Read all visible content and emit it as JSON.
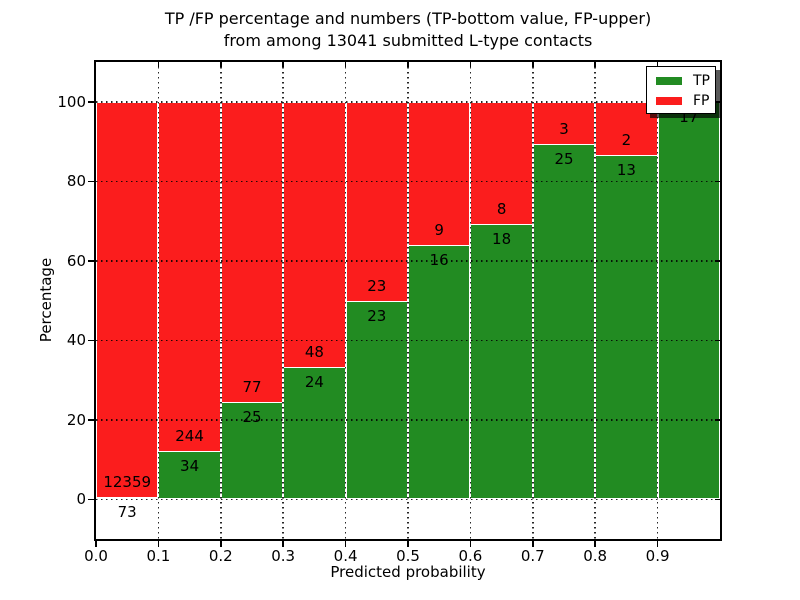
{
  "figure": {
    "title_line1": "TP /FP percentage and numbers (TP-bottom value, FP-upper)",
    "title_line2": "from among 13041 submitted L-type contacts",
    "xlabel": "Predicted probability",
    "ylabel": "Percentage"
  },
  "chart_data": {
    "type": "bar",
    "stacked": true,
    "normalized_to_percent": true,
    "title": "TP /FP percentage and numbers (TP-bottom value, FP-upper) from among 13041 submitted L-type contacts",
    "total_contacts": 13041,
    "xlabel": "Predicted probability",
    "ylabel": "Percentage",
    "xlim": [
      0.0,
      1.0
    ],
    "ylim": [
      -10,
      110
    ],
    "grid": "dotted black, both axes, drawn over bars",
    "xticks": [
      "0.0",
      "0.1",
      "0.2",
      "0.3",
      "0.4",
      "0.5",
      "0.6",
      "0.7",
      "0.8",
      "0.9"
    ],
    "yticks": [
      0,
      20,
      40,
      60,
      80,
      100
    ],
    "series": [
      {
        "name": "TP",
        "color": "#228b22"
      },
      {
        "name": "FP",
        "color": "#fb1d1d"
      }
    ],
    "legend_position": "upper right",
    "bars": [
      {
        "bin_start": 0.0,
        "bin_end": 0.1,
        "tp_count": 73,
        "fp_count": 12359,
        "tp_pct": 0.59,
        "fp_pct": 99.41,
        "tp_label": "73",
        "fp_label": "12359",
        "fp_label_visible": true
      },
      {
        "bin_start": 0.1,
        "bin_end": 0.2,
        "tp_count": 34,
        "fp_count": 244,
        "tp_pct": 12.23,
        "fp_pct": 87.77,
        "tp_label": "34",
        "fp_label": "244",
        "fp_label_visible": true
      },
      {
        "bin_start": 0.2,
        "bin_end": 0.3,
        "tp_count": 25,
        "fp_count": 77,
        "tp_pct": 24.51,
        "fp_pct": 75.49,
        "tp_label": "25",
        "fp_label": "77",
        "fp_label_visible": true
      },
      {
        "bin_start": 0.3,
        "bin_end": 0.4,
        "tp_count": 24,
        "fp_count": 48,
        "tp_pct": 33.33,
        "fp_pct": 66.67,
        "tp_label": "24",
        "fp_label": "48",
        "fp_label_visible": true
      },
      {
        "bin_start": 0.4,
        "bin_end": 0.5,
        "tp_count": 23,
        "fp_count": 23,
        "tp_pct": 50.0,
        "fp_pct": 50.0,
        "tp_label": "23",
        "fp_label": "23",
        "fp_label_visible": true
      },
      {
        "bin_start": 0.5,
        "bin_end": 0.6,
        "tp_count": 16,
        "fp_count": 9,
        "tp_pct": 64.0,
        "fp_pct": 36.0,
        "tp_label": "16",
        "fp_label": "9",
        "fp_label_visible": true
      },
      {
        "bin_start": 0.6,
        "bin_end": 0.7,
        "tp_count": 18,
        "fp_count": 8,
        "tp_pct": 69.23,
        "fp_pct": 30.77,
        "tp_label": "18",
        "fp_label": "8",
        "fp_label_visible": true
      },
      {
        "bin_start": 0.7,
        "bin_end": 0.8,
        "tp_count": 25,
        "fp_count": 3,
        "tp_pct": 89.29,
        "fp_pct": 10.71,
        "tp_label": "25",
        "fp_label": "3",
        "fp_label_visible": true
      },
      {
        "bin_start": 0.8,
        "bin_end": 0.9,
        "tp_count": 13,
        "fp_count": 2,
        "tp_pct": 86.67,
        "fp_pct": 13.33,
        "tp_label": "13",
        "fp_label": "2",
        "fp_label_visible": true
      },
      {
        "bin_start": 0.9,
        "bin_end": 1.0,
        "tp_count": 17,
        "fp_count": 0,
        "tp_pct": 100.0,
        "fp_pct": 0.0,
        "tp_label": "17",
        "fp_label": "",
        "fp_label_visible": false
      }
    ]
  },
  "colors": {
    "tp_green": "#228b22",
    "fp_red": "#fb1d1d",
    "axes": "#000000",
    "background": "#ffffff"
  }
}
